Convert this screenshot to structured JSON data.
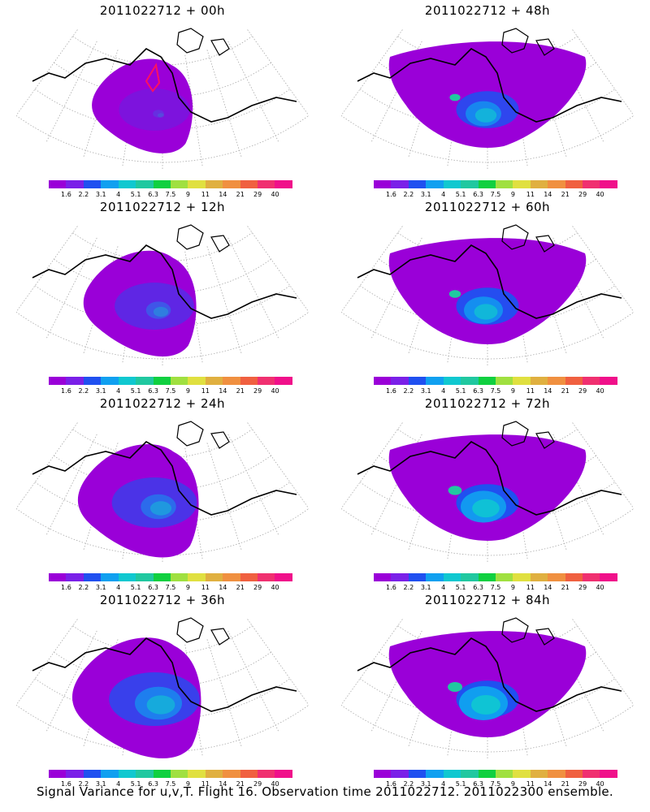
{
  "caption": "Signal Variance for u,v,T. Flight 16. Observation time 2011022712. 2011022300 ensemble.",
  "colorbar": {
    "colors": [
      "#9a00d8",
      "#7a20e8",
      "#2050f0",
      "#10a0f0",
      "#10c8d0",
      "#20c8a0",
      "#10d040",
      "#a0e040",
      "#e0e040",
      "#e0b040",
      "#f09040",
      "#f06040",
      "#f03070",
      "#f0108a"
    ],
    "labels": [
      "1.6",
      "2.2",
      "3.1",
      "4",
      "5.1",
      "6.3",
      "7.5",
      "9",
      "11",
      "14",
      "21",
      "29",
      "40"
    ]
  },
  "panels": [
    {
      "title": "2011022712 + 00h",
      "intensity": 0.15
    },
    {
      "title": "2011022712 + 48h",
      "intensity": 0.55
    },
    {
      "title": "2011022712 + 12h",
      "intensity": 0.3
    },
    {
      "title": "2011022712 + 60h",
      "intensity": 0.6
    },
    {
      "title": "2011022712 + 24h",
      "intensity": 0.4
    },
    {
      "title": "2011022712 + 72h",
      "intensity": 0.7
    },
    {
      "title": "2011022712 + 36h",
      "intensity": 0.5
    },
    {
      "title": "2011022712 + 84h",
      "intensity": 0.75
    }
  ]
}
